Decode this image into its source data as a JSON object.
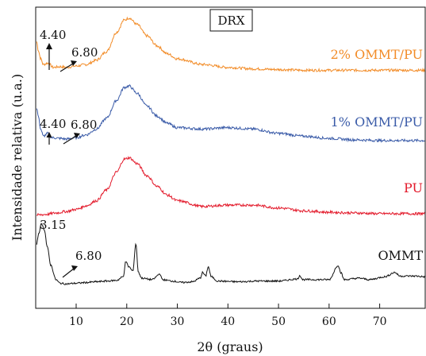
{
  "chart_data": {
    "type": "line",
    "title": "DRX",
    "xlabel": "2θ (graus)",
    "ylabel": "Intensidade relativa (u.a.)",
    "xlim": [
      2,
      79
    ],
    "xticks": [
      10,
      20,
      30,
      40,
      50,
      60,
      70
    ],
    "grid": false,
    "legend": "inline-right",
    "series": [
      {
        "name": "2% OMMT/PU",
        "color": "#f28c28",
        "offset": 3.0,
        "points": [
          [
            2.2,
            0.42
          ],
          [
            2.5,
            0.3
          ],
          [
            3,
            0.18
          ],
          [
            3.5,
            0.1
          ],
          [
            4.4,
            0.12
          ],
          [
            5.5,
            0.06
          ],
          [
            6.8,
            0.07
          ],
          [
            8,
            0.06
          ],
          [
            10,
            0.08
          ],
          [
            12,
            0.1
          ],
          [
            14,
            0.16
          ],
          [
            16,
            0.28
          ],
          [
            18,
            0.55
          ],
          [
            19.5,
            0.72
          ],
          [
            20.5,
            0.75
          ],
          [
            22,
            0.66
          ],
          [
            24,
            0.5
          ],
          [
            26,
            0.36
          ],
          [
            28,
            0.25
          ],
          [
            30,
            0.18
          ],
          [
            35,
            0.1
          ],
          [
            40,
            0.06
          ],
          [
            45,
            0.04
          ],
          [
            50,
            0.03
          ],
          [
            55,
            0.02
          ],
          [
            60,
            0.02
          ],
          [
            65,
            0.02
          ],
          [
            70,
            0.02
          ],
          [
            75,
            0.02
          ],
          [
            79,
            0.02
          ]
        ],
        "annotations": [
          "4.40",
          "6.80"
        ]
      },
      {
        "name": "1% OMMT/PU",
        "color": "#3a5ba8",
        "offset": 2.0,
        "points": [
          [
            2.2,
            0.5
          ],
          [
            2.5,
            0.38
          ],
          [
            3,
            0.2
          ],
          [
            3.5,
            0.1
          ],
          [
            4.4,
            0.14
          ],
          [
            5.2,
            0.08
          ],
          [
            6.8,
            0.07
          ],
          [
            8,
            0.06
          ],
          [
            10,
            0.08
          ],
          [
            12,
            0.12
          ],
          [
            14,
            0.2
          ],
          [
            16,
            0.35
          ],
          [
            18,
            0.6
          ],
          [
            19.5,
            0.78
          ],
          [
            20.5,
            0.8
          ],
          [
            22,
            0.7
          ],
          [
            24,
            0.52
          ],
          [
            26,
            0.38
          ],
          [
            28,
            0.28
          ],
          [
            30,
            0.22
          ],
          [
            35,
            0.2
          ],
          [
            40,
            0.22
          ],
          [
            45,
            0.2
          ],
          [
            50,
            0.14
          ],
          [
            55,
            0.1
          ],
          [
            60,
            0.07
          ],
          [
            65,
            0.05
          ],
          [
            70,
            0.04
          ],
          [
            75,
            0.04
          ],
          [
            79,
            0.04
          ]
        ],
        "annotations": [
          "4.40",
          "6.80"
        ]
      },
      {
        "name": "PU",
        "color": "#e31a2b",
        "offset": 1.0,
        "points": [
          [
            2.2,
            0.0
          ],
          [
            4,
            0.01
          ],
          [
            6,
            0.03
          ],
          [
            8,
            0.05
          ],
          [
            10,
            0.08
          ],
          [
            12,
            0.13
          ],
          [
            14,
            0.2
          ],
          [
            16,
            0.35
          ],
          [
            18,
            0.6
          ],
          [
            19.5,
            0.78
          ],
          [
            20.5,
            0.8
          ],
          [
            22,
            0.72
          ],
          [
            24,
            0.55
          ],
          [
            26,
            0.4
          ],
          [
            28,
            0.28
          ],
          [
            30,
            0.2
          ],
          [
            35,
            0.12
          ],
          [
            40,
            0.14
          ],
          [
            45,
            0.14
          ],
          [
            50,
            0.1
          ],
          [
            55,
            0.06
          ],
          [
            60,
            0.04
          ],
          [
            65,
            0.03
          ],
          [
            70,
            0.02
          ],
          [
            75,
            0.02
          ],
          [
            79,
            0.02
          ]
        ]
      },
      {
        "name": "OMMT",
        "color": "#111111",
        "offset": 0.0,
        "points": [
          [
            2.2,
            0.6
          ],
          [
            2.6,
            0.75
          ],
          [
            3.15,
            0.88
          ],
          [
            3.7,
            0.8
          ],
          [
            4.3,
            0.55
          ],
          [
            5,
            0.3
          ],
          [
            6,
            0.1
          ],
          [
            6.8,
            0.05
          ],
          [
            8,
            0.04
          ],
          [
            10,
            0.05
          ],
          [
            12,
            0.06
          ],
          [
            14,
            0.07
          ],
          [
            16,
            0.08
          ],
          [
            18,
            0.09
          ],
          [
            19.3,
            0.14
          ],
          [
            19.8,
            0.35
          ],
          [
            20.4,
            0.28
          ],
          [
            21.2,
            0.22
          ],
          [
            21.8,
            0.6
          ],
          [
            22.3,
            0.2
          ],
          [
            23,
            0.12
          ],
          [
            25,
            0.1
          ],
          [
            26.6,
            0.18
          ],
          [
            27,
            0.1
          ],
          [
            29,
            0.08
          ],
          [
            31,
            0.06
          ],
          [
            33,
            0.07
          ],
          [
            34.5,
            0.12
          ],
          [
            35,
            0.2
          ],
          [
            35.6,
            0.15
          ],
          [
            36.1,
            0.28
          ],
          [
            36.7,
            0.14
          ],
          [
            38,
            0.08
          ],
          [
            42,
            0.07
          ],
          [
            46,
            0.08
          ],
          [
            50,
            0.08
          ],
          [
            53.8,
            0.11
          ],
          [
            54.2,
            0.16
          ],
          [
            54.8,
            0.1
          ],
          [
            57,
            0.1
          ],
          [
            60,
            0.1
          ],
          [
            61.8,
            0.3
          ],
          [
            62.3,
            0.2
          ],
          [
            63,
            0.1
          ],
          [
            66,
            0.12
          ],
          [
            68,
            0.1
          ],
          [
            71,
            0.14
          ],
          [
            73,
            0.2
          ],
          [
            74,
            0.15
          ],
          [
            77,
            0.15
          ],
          [
            79,
            0.14
          ]
        ],
        "annotations": [
          "3.15",
          "6.80"
        ]
      }
    ]
  }
}
